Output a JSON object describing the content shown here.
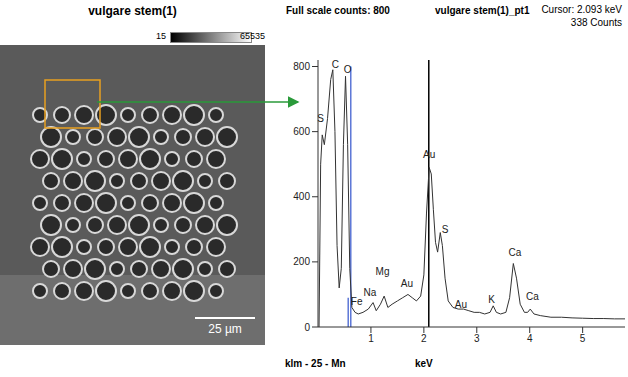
{
  "image": {
    "title": "vulgare stem(1)",
    "colorbar_min": 15,
    "colorbar_max": 65535,
    "scale_bar": "25 µm"
  },
  "chart_data": {
    "type": "line",
    "title": "vulgare stem(1)_pt1",
    "header_left": "Full scale counts: 800",
    "cursor_label": "Cursor: 2.093 keV",
    "cursor_counts_label": "338 Counts",
    "cursor": 2.093,
    "x_label": "keV",
    "footer": "klm - 25 - Mn",
    "color": "#333333",
    "x": [
      0.02,
      0.05,
      0.08,
      0.12,
      0.18,
      0.24,
      0.28,
      0.32,
      0.36,
      0.4,
      0.44,
      0.48,
      0.52,
      0.56,
      0.6,
      0.64,
      0.7,
      0.76,
      0.85,
      0.95,
      1.04,
      1.1,
      1.18,
      1.25,
      1.32,
      1.4,
      1.5,
      1.6,
      1.7,
      1.78,
      1.86,
      1.94,
      2.0,
      2.05,
      2.1,
      2.14,
      2.18,
      2.22,
      2.26,
      2.31,
      2.35,
      2.4,
      2.46,
      2.55,
      2.65,
      2.75,
      2.85,
      2.95,
      3.05,
      3.15,
      3.25,
      3.31,
      3.37,
      3.45,
      3.55,
      3.62,
      3.69,
      3.75,
      3.82,
      3.9,
      3.96,
      4.01,
      4.08,
      4.2,
      4.4,
      4.6,
      4.8,
      5.0,
      5.2,
      5.4,
      5.6,
      5.8
    ],
    "values": [
      0,
      500,
      590,
      560,
      640,
      760,
      790,
      600,
      250,
      120,
      180,
      560,
      770,
      560,
      180,
      60,
      45,
      40,
      45,
      55,
      75,
      50,
      70,
      95,
      60,
      70,
      80,
      90,
      100,
      90,
      80,
      95,
      160,
      350,
      490,
      470,
      360,
      260,
      230,
      290,
      250,
      150,
      80,
      60,
      55,
      55,
      50,
      45,
      45,
      40,
      45,
      65,
      45,
      40,
      45,
      90,
      195,
      150,
      70,
      45,
      45,
      55,
      40,
      35,
      30,
      30,
      28,
      27,
      26,
      26,
      25,
      25
    ],
    "xlim": [
      0,
      5.8
    ],
    "xticks": [
      1,
      2,
      3,
      4,
      5
    ],
    "ylim": [
      0,
      820
    ],
    "yticks": [
      0,
      200,
      400,
      600,
      800
    ],
    "grid": false,
    "marker_lines": [
      {
        "x": 0.62,
        "y": 800,
        "color": "#3355cc"
      },
      {
        "x": 0.57,
        "y": 90,
        "color": "#3355cc"
      }
    ],
    "annotations": [
      {
        "label": "S",
        "x": 0.05,
        "y": 640
      },
      {
        "label": "C",
        "x": 0.33,
        "y": 805
      },
      {
        "label": "O",
        "x": 0.56,
        "y": 790
      },
      {
        "label": "Fe",
        "x": 0.73,
        "y": 80
      },
      {
        "label": "Na",
        "x": 0.98,
        "y": 105
      },
      {
        "label": "Mg",
        "x": 1.22,
        "y": 170
      },
      {
        "label": "Au",
        "x": 1.68,
        "y": 133
      },
      {
        "label": "Au",
        "x": 2.1,
        "y": 530
      },
      {
        "label": "S",
        "x": 2.4,
        "y": 300
      },
      {
        "label": "Au",
        "x": 2.7,
        "y": 68
      },
      {
        "label": "K",
        "x": 3.28,
        "y": 85
      },
      {
        "label": "Ca",
        "x": 3.72,
        "y": 228
      },
      {
        "label": "Ca",
        "x": 4.05,
        "y": 95
      }
    ]
  }
}
